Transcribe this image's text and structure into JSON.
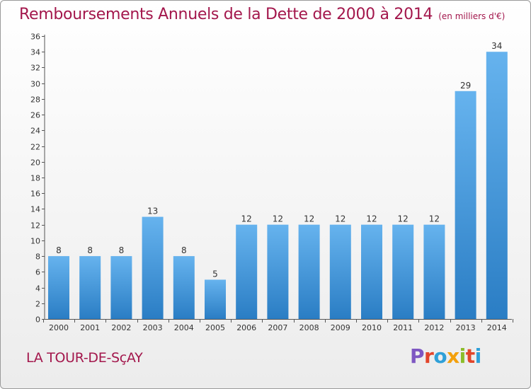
{
  "header": {
    "title": "Remboursements Annuels de la Dette de 2000 à 2014",
    "subtitle": "(en milliers d'€)"
  },
  "footer": {
    "city": "LA TOUR-DE-SçAY",
    "logo": "Proxiti"
  },
  "colors": {
    "title": "#a3174c",
    "bar_light": "#66b3ee",
    "bar_dark": "#2a7dc4",
    "logo_letters": [
      "#7e57c2",
      "#e2452a",
      "#2fa0d8",
      "#f3a00c",
      "#8cbd2a",
      "#e2452a",
      "#2fa0d8"
    ]
  },
  "chart_data": {
    "type": "bar",
    "title": "Remboursements Annuels de la Dette de 2000 à 2014",
    "subtitle": "(en milliers d'€)",
    "xlabel": "",
    "ylabel": "",
    "categories": [
      "2000",
      "2001",
      "2002",
      "2003",
      "2004",
      "2005",
      "2006",
      "2007",
      "2008",
      "2009",
      "2010",
      "2011",
      "2012",
      "2013",
      "2014"
    ],
    "values": [
      8,
      8,
      8,
      13,
      8,
      5,
      12,
      12,
      12,
      12,
      12,
      12,
      12,
      29,
      34
    ],
    "ylim": [
      0,
      36
    ],
    "yticks": [
      0,
      2,
      4,
      6,
      8,
      10,
      12,
      14,
      16,
      18,
      20,
      22,
      24,
      26,
      28,
      30,
      32,
      34,
      36
    ],
    "grid": false,
    "legend": "none",
    "data_labels": true
  }
}
